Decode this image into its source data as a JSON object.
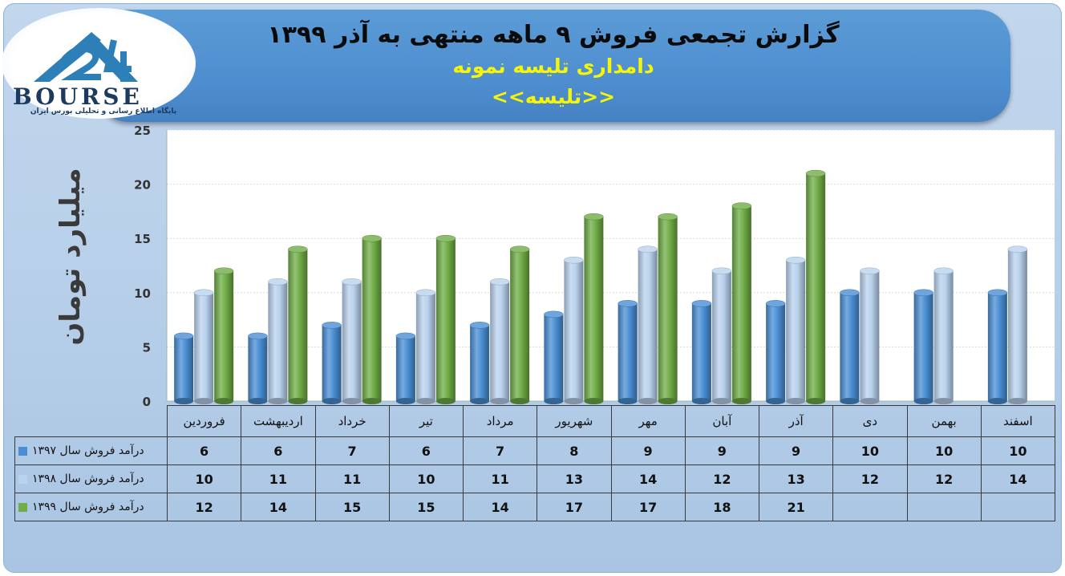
{
  "header": {
    "title": "گزارش تجمعی فروش ۹ ماهه منتهی به آذر ۱۳۹۹",
    "company": "دامداری تلیسه نمونه",
    "symbol": "<<تلیسه>>"
  },
  "logo": {
    "wordmark": "BOURSE",
    "tagline": "پایگاه اطلاع رسانی و تحلیلی بورس ایران",
    "accent": "#2d7fb8"
  },
  "colors": {
    "series_1397": "#4a8fd4",
    "series_1398": "#b9d2ee",
    "series_1399": "#70ad47",
    "plot_bg": "#ffffff",
    "grid": "#cfe0c4"
  },
  "chart_data": {
    "type": "bar",
    "ylabel": "میلیارد تومان",
    "ylim": [
      0,
      25
    ],
    "yticks": [
      0,
      5,
      10,
      15,
      20,
      25
    ],
    "grid": true,
    "categories": [
      "فروردین",
      "اردیبهشت",
      "خرداد",
      "تیر",
      "مرداد",
      "شهریور",
      "مهر",
      "آبان",
      "آذر",
      "دی",
      "بهمن",
      "اسفند"
    ],
    "series": [
      {
        "name": "درآمد فروش سال ۱۳۹۷",
        "color": "#4a8fd4",
        "values": [
          6,
          6,
          7,
          6,
          7,
          8,
          9,
          9,
          9,
          10,
          10,
          10
        ]
      },
      {
        "name": "درآمد فروش سال ۱۳۹۸",
        "color": "#b9d2ee",
        "values": [
          10,
          11,
          11,
          10,
          11,
          13,
          14,
          12,
          13,
          12,
          12,
          14
        ]
      },
      {
        "name": "درآمد فروش سال ۱۳۹۹",
        "color": "#70ad47",
        "values": [
          12,
          14,
          15,
          15,
          14,
          17,
          17,
          18,
          21,
          null,
          null,
          null
        ]
      }
    ]
  }
}
